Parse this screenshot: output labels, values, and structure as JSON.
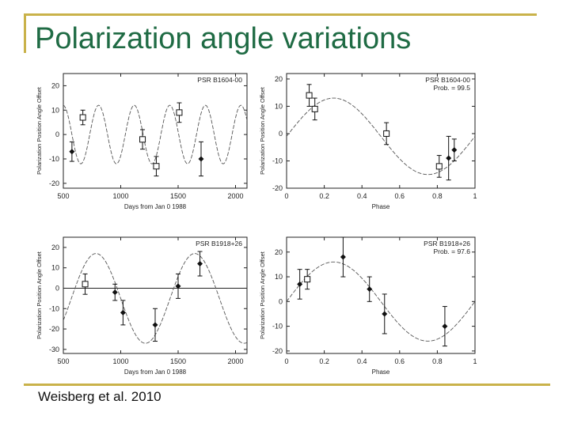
{
  "slide": {
    "title": "Polarization angle variations",
    "citation": "Weisberg et al. 2010"
  },
  "chart_data": [
    {
      "type": "scatter",
      "panel": "top-left",
      "pulsar_label": "PSR B1604-00",
      "prob_label": "",
      "xlabel": "Days from Jan 0 1988",
      "ylabel": "Polarization Position Angle Offset",
      "xlim": [
        500,
        2100
      ],
      "ylim": [
        -22,
        25
      ],
      "xticks": [
        500,
        1000,
        1500,
        2000
      ],
      "yticks": [
        -20,
        -10,
        0,
        10,
        20
      ],
      "model": {
        "kind": "sine",
        "amplitude": 12,
        "offset": 0,
        "period": 310,
        "phase_x": 730
      },
      "flat_line": null,
      "series": [
        {
          "name": "diamond points",
          "marker": "diamond",
          "points": [
            {
              "x": 575,
              "y": -7,
              "err": 4
            },
            {
              "x": 1700,
              "y": -10,
              "err": 7
            }
          ]
        },
        {
          "name": "square points",
          "marker": "square",
          "points": [
            {
              "x": 670,
              "y": 7,
              "err": 3
            },
            {
              "x": 1190,
              "y": -2,
              "err": 4
            },
            {
              "x": 1310,
              "y": -13,
              "err": 4
            },
            {
              "x": 1510,
              "y": 9,
              "err": 4
            }
          ]
        }
      ]
    },
    {
      "type": "scatter",
      "panel": "top-right",
      "pulsar_label": "PSR B1604-00",
      "prob_label": "Prob. = 99.5",
      "xlabel": "Phase",
      "ylabel": "Polarization Position Angle Offset",
      "xlim": [
        0.0,
        1.0
      ],
      "ylim": [
        -20,
        22
      ],
      "xticks": [
        0.0,
        0.2,
        0.4,
        0.6,
        0.8,
        1.0
      ],
      "yticks": [
        -20,
        -10,
        0,
        10,
        20
      ],
      "model": {
        "kind": "sine",
        "amplitude": 14,
        "offset": -1,
        "period": 1.0,
        "phase_x": 0.0
      },
      "flat_line": null,
      "series": [
        {
          "name": "diamond points",
          "marker": "diamond",
          "points": [
            {
              "x": 0.86,
              "y": -9,
              "err": 8
            },
            {
              "x": 0.89,
              "y": -6,
              "err": 4
            }
          ]
        },
        {
          "name": "square points",
          "marker": "square",
          "points": [
            {
              "x": 0.12,
              "y": 14,
              "err": 4
            },
            {
              "x": 0.15,
              "y": 9,
              "err": 4
            },
            {
              "x": 0.53,
              "y": 0,
              "err": 4
            },
            {
              "x": 0.81,
              "y": -12,
              "err": 4
            }
          ]
        }
      ]
    },
    {
      "type": "scatter",
      "panel": "bottom-left",
      "pulsar_label": "PSR B1918+26",
      "prob_label": "",
      "xlabel": "Days from Jan 0 1988",
      "ylabel": "Polarization Position Angle Offset",
      "xlim": [
        500,
        2100
      ],
      "ylim": [
        -32,
        25
      ],
      "xticks": [
        500,
        1000,
        1500,
        2000
      ],
      "yticks": [
        -30,
        -20,
        -10,
        0,
        10,
        20
      ],
      "model": {
        "kind": "sine",
        "amplitude": 22,
        "offset": -5,
        "period": 860,
        "phase_x": 570
      },
      "flat_line": 0,
      "series": [
        {
          "name": "diamond points",
          "marker": "diamond",
          "points": [
            {
              "x": 950,
              "y": -2,
              "err": 4
            },
            {
              "x": 1020,
              "y": -12,
              "err": 6
            },
            {
              "x": 1300,
              "y": -18,
              "err": 8
            },
            {
              "x": 1500,
              "y": 1,
              "err": 6
            },
            {
              "x": 1690,
              "y": 12,
              "err": 6
            }
          ]
        },
        {
          "name": "square points",
          "marker": "square",
          "points": [
            {
              "x": 690,
              "y": 2,
              "err": 5
            }
          ]
        }
      ]
    },
    {
      "type": "scatter",
      "panel": "bottom-right",
      "pulsar_label": "PSR B1918+26",
      "prob_label": "Prob. = 97.6",
      "xlabel": "Phase",
      "ylabel": "Polarization Position Angle Offset",
      "xlim": [
        0.0,
        1.0
      ],
      "ylim": [
        -21,
        26
      ],
      "xticks": [
        0.0,
        0.2,
        0.4,
        0.6,
        0.8,
        1.0
      ],
      "yticks": [
        -20,
        -10,
        0,
        10,
        20
      ],
      "model": {
        "kind": "sine",
        "amplitude": 16,
        "offset": 0,
        "period": 1.0,
        "phase_x": 0.0
      },
      "flat_line": null,
      "series": [
        {
          "name": "diamond points",
          "marker": "diamond",
          "points": [
            {
              "x": 0.07,
              "y": 7,
              "err": 6
            },
            {
              "x": 0.3,
              "y": 18,
              "err": 8
            },
            {
              "x": 0.44,
              "y": 5,
              "err": 5
            },
            {
              "x": 0.52,
              "y": -5,
              "err": 8
            },
            {
              "x": 0.84,
              "y": -10,
              "err": 8
            }
          ]
        },
        {
          "name": "square points",
          "marker": "square",
          "points": [
            {
              "x": 0.11,
              "y": 9,
              "err": 4
            }
          ]
        }
      ]
    }
  ]
}
